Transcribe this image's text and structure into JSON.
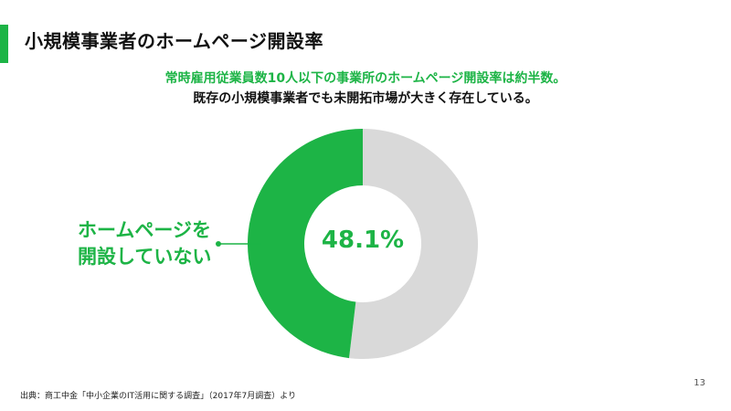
{
  "slide": {
    "title": "小規模事業者のホームページ開設率",
    "subtitle_1": "常時雇用従業員数10人以下の事業所のホームページ開設率は約半数。",
    "subtitle_2": "既存の小規模事業者でも未開拓市場が大きく存在している。",
    "source": "出典：商工中金「中小企業のIT活用に関する調査」（2017年7月調査）より",
    "page_number": "13"
  },
  "colors": {
    "accent": "#1db446",
    "rest": "#d9d9d9"
  },
  "chart_data": {
    "type": "pie",
    "donut": true,
    "center_label": "48.1%",
    "callout": [
      "ホームページを",
      "開設していない"
    ],
    "slices": [
      {
        "label": "ホームページを開設していない",
        "value": 48.1,
        "color": "#1db446"
      },
      {
        "label": "",
        "value": 51.9,
        "color": "#d9d9d9"
      }
    ]
  }
}
